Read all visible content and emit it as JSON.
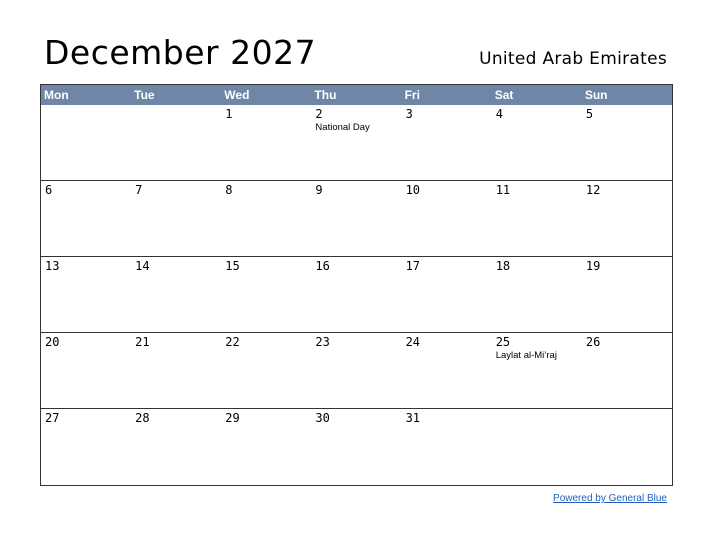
{
  "header": {
    "title": "December 2027",
    "region": "United Arab Emirates"
  },
  "weekdays": [
    "Mon",
    "Tue",
    "Wed",
    "Thu",
    "Fri",
    "Sat",
    "Sun"
  ],
  "weeks": [
    [
      {
        "day": "",
        "holiday": ""
      },
      {
        "day": "",
        "holiday": ""
      },
      {
        "day": "1",
        "holiday": ""
      },
      {
        "day": "2",
        "holiday": "National Day"
      },
      {
        "day": "3",
        "holiday": ""
      },
      {
        "day": "4",
        "holiday": ""
      },
      {
        "day": "5",
        "holiday": ""
      }
    ],
    [
      {
        "day": "6",
        "holiday": ""
      },
      {
        "day": "7",
        "holiday": ""
      },
      {
        "day": "8",
        "holiday": ""
      },
      {
        "day": "9",
        "holiday": ""
      },
      {
        "day": "10",
        "holiday": ""
      },
      {
        "day": "11",
        "holiday": ""
      },
      {
        "day": "12",
        "holiday": ""
      }
    ],
    [
      {
        "day": "13",
        "holiday": ""
      },
      {
        "day": "14",
        "holiday": ""
      },
      {
        "day": "15",
        "holiday": ""
      },
      {
        "day": "16",
        "holiday": ""
      },
      {
        "day": "17",
        "holiday": ""
      },
      {
        "day": "18",
        "holiday": ""
      },
      {
        "day": "19",
        "holiday": ""
      }
    ],
    [
      {
        "day": "20",
        "holiday": ""
      },
      {
        "day": "21",
        "holiday": ""
      },
      {
        "day": "22",
        "holiday": ""
      },
      {
        "day": "23",
        "holiday": ""
      },
      {
        "day": "24",
        "holiday": ""
      },
      {
        "day": "25",
        "holiday": "Laylat al-Mi’raj"
      },
      {
        "day": "26",
        "holiday": ""
      }
    ],
    [
      {
        "day": "27",
        "holiday": ""
      },
      {
        "day": "28",
        "holiday": ""
      },
      {
        "day": "29",
        "holiday": ""
      },
      {
        "day": "30",
        "holiday": ""
      },
      {
        "day": "31",
        "holiday": ""
      },
      {
        "day": "",
        "holiday": ""
      },
      {
        "day": "",
        "holiday": ""
      }
    ]
  ],
  "footer": {
    "link_text": "Powered by General Blue"
  },
  "colors": {
    "header_bg": "#6f86a6",
    "link": "#1f5fbf"
  }
}
